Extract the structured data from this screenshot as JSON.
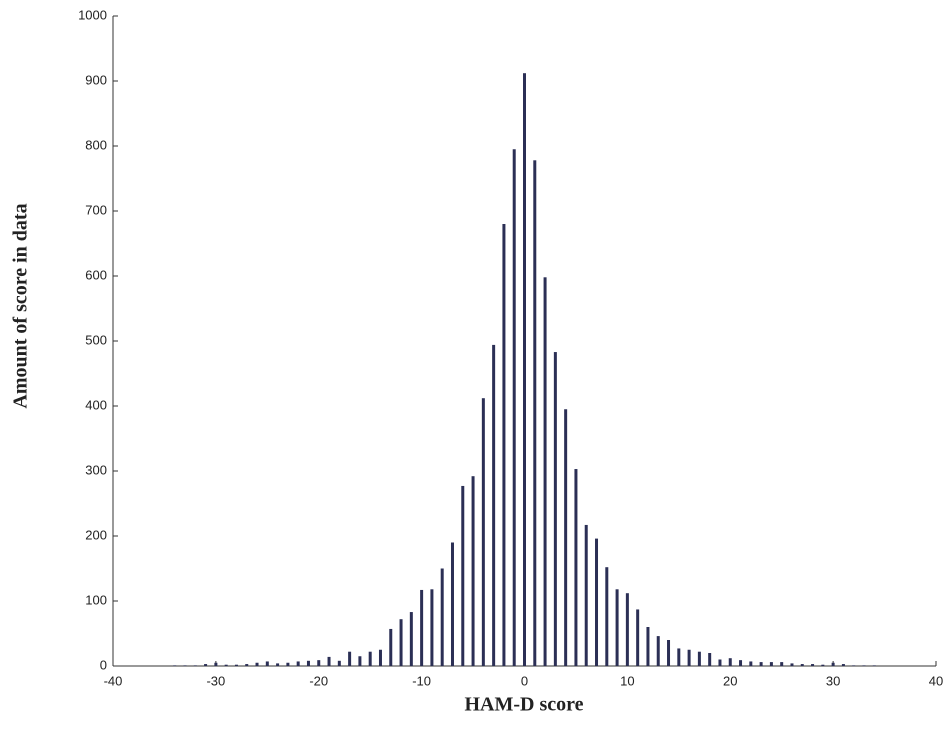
{
  "chart_data": {
    "type": "bar",
    "xlabel": "HAM-D score",
    "ylabel": "Amount of score in data",
    "color": "#2b2f55",
    "x": [
      -34,
      -33,
      -32,
      -31,
      -30,
      -29,
      -28,
      -27,
      -26,
      -25,
      -24,
      -23,
      -22,
      -21,
      -20,
      -19,
      -18,
      -17,
      -16,
      -15,
      -14,
      -13,
      -12,
      -11,
      -10,
      -9,
      -8,
      -7,
      -6,
      -5,
      -4,
      -3,
      -2,
      -1,
      0,
      1,
      2,
      3,
      4,
      5,
      6,
      7,
      8,
      9,
      10,
      11,
      12,
      13,
      14,
      15,
      16,
      17,
      18,
      19,
      20,
      21,
      22,
      23,
      24,
      25,
      26,
      27,
      28,
      29,
      30,
      31,
      32,
      33,
      34
    ],
    "values": [
      1,
      1,
      1,
      3,
      5,
      2,
      2,
      3,
      5,
      7,
      4,
      5,
      7,
      8,
      9,
      14,
      8,
      22,
      15,
      22,
      25,
      57,
      72,
      83,
      117,
      118,
      150,
      190,
      277,
      292,
      412,
      494,
      680,
      795,
      912,
      778,
      598,
      483,
      395,
      303,
      217,
      196,
      152,
      118,
      112,
      87,
      60,
      46,
      40,
      27,
      25,
      22,
      20,
      10,
      12,
      9,
      7,
      6,
      6,
      6,
      4,
      3,
      3,
      2,
      5,
      3,
      1,
      1,
      1
    ],
    "xlim": [
      -40,
      40
    ],
    "xticks": [
      -40,
      -30,
      -20,
      -10,
      0,
      10,
      20,
      30,
      40
    ],
    "ylim": [
      0,
      1000
    ],
    "yticks": [
      0,
      100,
      200,
      300,
      400,
      500,
      600,
      700,
      800,
      900,
      1000
    ]
  }
}
